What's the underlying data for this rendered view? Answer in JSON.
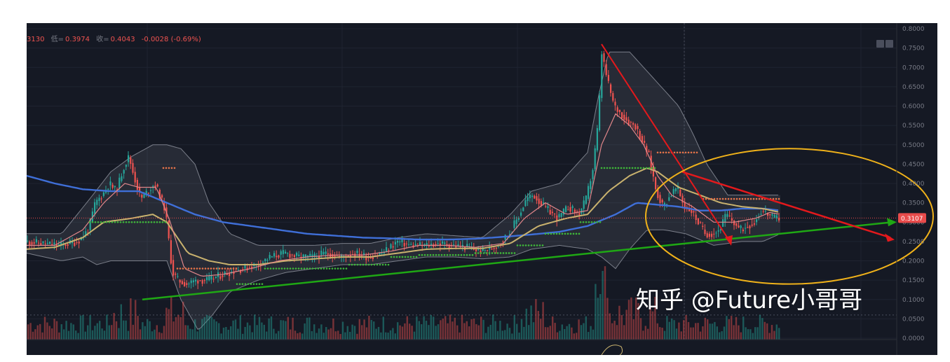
{
  "info_bar": {
    "open_partial": "3130",
    "low_label": "低=",
    "low_value": "0.3974",
    "close_label": "收=",
    "close_value": "0.4043",
    "change": "-0.0028 (-0.69%)"
  },
  "watermark": "知乎 @Future小哥哥",
  "colors": {
    "background": "#151924",
    "up_candle": "#26a69a",
    "down_candle": "#ef5350",
    "ma_long": "#3f6fd8",
    "ma_mid": "#c9b26e",
    "ma_short": "#e0868a",
    "trend_green": "#1fa814",
    "trend_red": "#e3191c",
    "ellipse": "#f0b21a",
    "price_tag": "#e84b4b"
  },
  "chart_data": {
    "type": "candlestick",
    "y_axis": {
      "ylim": [
        0.0,
        0.8
      ],
      "tick_labels": [
        "0.8000",
        "0.7500",
        "0.7000",
        "0.6500",
        "0.6000",
        "0.5500",
        "0.5000",
        "0.4500",
        "0.4000",
        "0.3500",
        "0.3000",
        "0.2500",
        "0.2000",
        "0.1500",
        "0.1000",
        "0.0500",
        "0.0000"
      ],
      "position": "right"
    },
    "last_price_label": "0.3107",
    "last_price": 0.3107,
    "price_path": [
      [
        0,
        0.25
      ],
      [
        25,
        0.245
      ],
      [
        50,
        0.24
      ],
      [
        75,
        0.25
      ],
      [
        90,
        0.28
      ],
      [
        100,
        0.35
      ],
      [
        110,
        0.37
      ],
      [
        120,
        0.4
      ],
      [
        130,
        0.38
      ],
      [
        140,
        0.44
      ],
      [
        148,
        0.47
      ],
      [
        155,
        0.42
      ],
      [
        165,
        0.36
      ],
      [
        175,
        0.38
      ],
      [
        185,
        0.4
      ],
      [
        192,
        0.37
      ],
      [
        200,
        0.33
      ],
      [
        205,
        0.25
      ],
      [
        210,
        0.17
      ],
      [
        218,
        0.15
      ],
      [
        230,
        0.14
      ],
      [
        245,
        0.15
      ],
      [
        260,
        0.15
      ],
      [
        275,
        0.16
      ],
      [
        290,
        0.17
      ],
      [
        310,
        0.18
      ],
      [
        330,
        0.19
      ],
      [
        350,
        0.21
      ],
      [
        370,
        0.22
      ],
      [
        390,
        0.21
      ],
      [
        410,
        0.21
      ],
      [
        430,
        0.22
      ],
      [
        450,
        0.21
      ],
      [
        470,
        0.22
      ],
      [
        490,
        0.21
      ],
      [
        510,
        0.22
      ],
      [
        530,
        0.25
      ],
      [
        550,
        0.24
      ],
      [
        570,
        0.24
      ],
      [
        590,
        0.245
      ],
      [
        610,
        0.24
      ],
      [
        630,
        0.235
      ],
      [
        650,
        0.225
      ],
      [
        670,
        0.235
      ],
      [
        690,
        0.27
      ],
      [
        705,
        0.32
      ],
      [
        715,
        0.36
      ],
      [
        725,
        0.37
      ],
      [
        740,
        0.34
      ],
      [
        760,
        0.31
      ],
      [
        775,
        0.34
      ],
      [
        790,
        0.32
      ],
      [
        800,
        0.36
      ],
      [
        810,
        0.44
      ],
      [
        818,
        0.57
      ],
      [
        822,
        0.74
      ],
      [
        830,
        0.67
      ],
      [
        840,
        0.6
      ],
      [
        850,
        0.58
      ],
      [
        860,
        0.56
      ],
      [
        870,
        0.55
      ],
      [
        880,
        0.51
      ],
      [
        890,
        0.47
      ],
      [
        900,
        0.38
      ],
      [
        910,
        0.34
      ],
      [
        920,
        0.37
      ],
      [
        930,
        0.39
      ],
      [
        940,
        0.34
      ],
      [
        950,
        0.33
      ],
      [
        960,
        0.3
      ],
      [
        970,
        0.27
      ],
      [
        980,
        0.27
      ],
      [
        990,
        0.28
      ],
      [
        1000,
        0.32
      ],
      [
        1010,
        0.3
      ],
      [
        1020,
        0.28
      ],
      [
        1030,
        0.29
      ],
      [
        1040,
        0.3
      ],
      [
        1050,
        0.33
      ],
      [
        1060,
        0.32
      ],
      [
        1067,
        0.31
      ],
      [
        1075,
        0.3107
      ]
    ],
    "ma_long": [
      [
        0,
        0.42
      ],
      [
        40,
        0.4
      ],
      [
        80,
        0.385
      ],
      [
        120,
        0.38
      ],
      [
        160,
        0.38
      ],
      [
        200,
        0.35
      ],
      [
        240,
        0.32
      ],
      [
        280,
        0.3
      ],
      [
        320,
        0.29
      ],
      [
        360,
        0.28
      ],
      [
        400,
        0.27
      ],
      [
        440,
        0.265
      ],
      [
        480,
        0.26
      ],
      [
        520,
        0.258
      ],
      [
        560,
        0.255
      ],
      [
        600,
        0.255
      ],
      [
        640,
        0.257
      ],
      [
        680,
        0.262
      ],
      [
        720,
        0.268
      ],
      [
        760,
        0.275
      ],
      [
        800,
        0.29
      ],
      [
        840,
        0.32
      ],
      [
        870,
        0.35
      ],
      [
        900,
        0.345
      ],
      [
        930,
        0.34
      ],
      [
        960,
        0.33
      ],
      [
        990,
        0.33
      ],
      [
        1020,
        0.335
      ],
      [
        1050,
        0.335
      ],
      [
        1075,
        0.33
      ]
    ],
    "ma_mid": [
      [
        0,
        0.23
      ],
      [
        40,
        0.235
      ],
      [
        80,
        0.26
      ],
      [
        110,
        0.3
      ],
      [
        150,
        0.31
      ],
      [
        180,
        0.32
      ],
      [
        200,
        0.3
      ],
      [
        230,
        0.22
      ],
      [
        260,
        0.2
      ],
      [
        290,
        0.19
      ],
      [
        330,
        0.19
      ],
      [
        370,
        0.2
      ],
      [
        410,
        0.205
      ],
      [
        450,
        0.21
      ],
      [
        490,
        0.21
      ],
      [
        530,
        0.22
      ],
      [
        570,
        0.23
      ],
      [
        610,
        0.232
      ],
      [
        650,
        0.232
      ],
      [
        690,
        0.245
      ],
      [
        730,
        0.29
      ],
      [
        770,
        0.31
      ],
      [
        800,
        0.32
      ],
      [
        830,
        0.38
      ],
      [
        860,
        0.42
      ],
      [
        885,
        0.44
      ],
      [
        900,
        0.43
      ],
      [
        930,
        0.39
      ],
      [
        960,
        0.37
      ],
      [
        990,
        0.35
      ],
      [
        1020,
        0.34
      ],
      [
        1050,
        0.335
      ],
      [
        1075,
        0.325
      ]
    ],
    "ma_short": [
      [
        0,
        0.24
      ],
      [
        40,
        0.24
      ],
      [
        80,
        0.28
      ],
      [
        110,
        0.35
      ],
      [
        140,
        0.4
      ],
      [
        160,
        0.39
      ],
      [
        185,
        0.39
      ],
      [
        205,
        0.3
      ],
      [
        225,
        0.18
      ],
      [
        250,
        0.16
      ],
      [
        280,
        0.165
      ],
      [
        320,
        0.18
      ],
      [
        360,
        0.2
      ],
      [
        400,
        0.21
      ],
      [
        440,
        0.215
      ],
      [
        480,
        0.215
      ],
      [
        520,
        0.225
      ],
      [
        560,
        0.24
      ],
      [
        600,
        0.24
      ],
      [
        640,
        0.235
      ],
      [
        680,
        0.245
      ],
      [
        710,
        0.31
      ],
      [
        740,
        0.35
      ],
      [
        770,
        0.32
      ],
      [
        800,
        0.33
      ],
      [
        820,
        0.5
      ],
      [
        840,
        0.58
      ],
      [
        860,
        0.55
      ],
      [
        880,
        0.5
      ],
      [
        900,
        0.42
      ],
      [
        920,
        0.37
      ],
      [
        950,
        0.34
      ],
      [
        980,
        0.3
      ],
      [
        1010,
        0.3
      ],
      [
        1040,
        0.31
      ],
      [
        1060,
        0.325
      ],
      [
        1075,
        0.32
      ]
    ],
    "bollinger_upper": [
      [
        0,
        0.27
      ],
      [
        50,
        0.27
      ],
      [
        90,
        0.36
      ],
      [
        120,
        0.43
      ],
      [
        150,
        0.47
      ],
      [
        180,
        0.5
      ],
      [
        200,
        0.5
      ],
      [
        220,
        0.49
      ],
      [
        240,
        0.45
      ],
      [
        260,
        0.35
      ],
      [
        290,
        0.27
      ],
      [
        330,
        0.24
      ],
      [
        370,
        0.24
      ],
      [
        410,
        0.24
      ],
      [
        450,
        0.245
      ],
      [
        490,
        0.245
      ],
      [
        530,
        0.26
      ],
      [
        570,
        0.27
      ],
      [
        610,
        0.265
      ],
      [
        650,
        0.26
      ],
      [
        690,
        0.32
      ],
      [
        720,
        0.38
      ],
      [
        760,
        0.4
      ],
      [
        800,
        0.48
      ],
      [
        815,
        0.62
      ],
      [
        830,
        0.74
      ],
      [
        860,
        0.74
      ],
      [
        885,
        0.69
      ],
      [
        900,
        0.66
      ],
      [
        930,
        0.6
      ],
      [
        950,
        0.53
      ],
      [
        970,
        0.45
      ],
      [
        1000,
        0.37
      ],
      [
        1040,
        0.37
      ],
      [
        1075,
        0.37
      ]
    ],
    "bollinger_lower": [
      [
        0,
        0.22
      ],
      [
        50,
        0.2
      ],
      [
        80,
        0.21
      ],
      [
        100,
        0.19
      ],
      [
        120,
        0.2
      ],
      [
        150,
        0.2
      ],
      [
        180,
        0.2
      ],
      [
        200,
        0.2
      ],
      [
        220,
        0.1
      ],
      [
        245,
        0.02
      ],
      [
        265,
        0.06
      ],
      [
        290,
        0.12
      ],
      [
        330,
        0.15
      ],
      [
        370,
        0.17
      ],
      [
        410,
        0.18
      ],
      [
        450,
        0.19
      ],
      [
        490,
        0.19
      ],
      [
        530,
        0.2
      ],
      [
        570,
        0.21
      ],
      [
        610,
        0.21
      ],
      [
        650,
        0.205
      ],
      [
        690,
        0.21
      ],
      [
        720,
        0.23
      ],
      [
        760,
        0.24
      ],
      [
        800,
        0.23
      ],
      [
        820,
        0.21
      ],
      [
        840,
        0.18
      ],
      [
        860,
        0.23
      ],
      [
        885,
        0.28
      ],
      [
        910,
        0.28
      ],
      [
        940,
        0.27
      ],
      [
        980,
        0.24
      ],
      [
        1020,
        0.25
      ],
      [
        1050,
        0.25
      ],
      [
        1075,
        0.27
      ]
    ],
    "trend_green": {
      "from": [
        165,
        0.1
      ],
      "to": [
        1235,
        0.3
      ]
    },
    "trend_red_steep": {
      "from": [
        820,
        0.76
      ],
      "to": [
        1003,
        0.25
      ]
    },
    "trend_red_shallow": {
      "from": [
        935,
        0.43
      ],
      "to": [
        1232,
        0.26
      ]
    },
    "ellipse": {
      "center": [
        1088,
        0.315
      ],
      "rx": 205,
      "ry": 0.175
    }
  }
}
